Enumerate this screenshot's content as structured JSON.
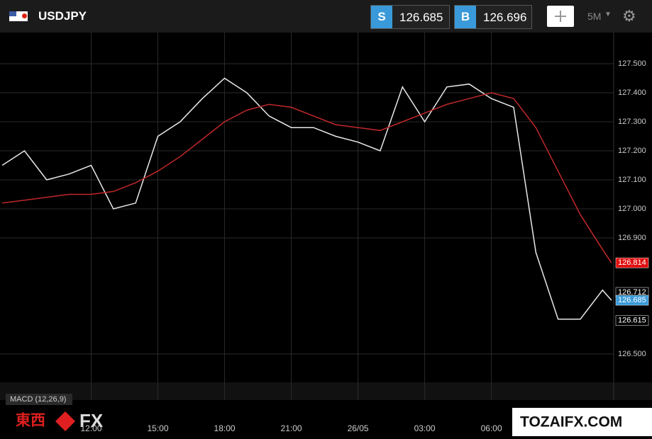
{
  "header": {
    "symbol": "USDJPY",
    "sell_label": "S",
    "sell_price": "126.685",
    "buy_label": "B",
    "buy_price": "126.696",
    "timeframe": "5M"
  },
  "chart_data": {
    "type": "line",
    "x": [
      -1,
      0,
      1,
      2,
      3,
      4,
      5,
      6,
      7,
      8,
      9,
      10,
      11,
      12,
      13,
      14,
      15,
      16,
      17,
      18,
      19,
      20,
      21,
      22,
      23,
      24,
      25,
      26,
      26.4
    ],
    "series": [
      {
        "color": "#e8e8e8",
        "values": [
          127.15,
          127.2,
          127.1,
          127.12,
          127.15,
          127.0,
          127.02,
          127.25,
          127.3,
          127.38,
          127.45,
          127.4,
          127.32,
          127.28,
          127.28,
          127.25,
          127.23,
          127.2,
          127.42,
          127.3,
          127.42,
          127.43,
          127.38,
          127.35,
          126.85,
          126.62,
          126.62,
          126.72,
          126.685
        ]
      },
      {
        "color": "#c0282a",
        "values": [
          127.02,
          127.03,
          127.04,
          127.05,
          127.05,
          127.06,
          127.09,
          127.13,
          127.18,
          127.24,
          127.3,
          127.34,
          127.36,
          127.35,
          127.32,
          127.29,
          127.28,
          127.27,
          127.3,
          127.33,
          127.36,
          127.38,
          127.4,
          127.38,
          127.28,
          127.13,
          126.98,
          126.86,
          126.814
        ]
      }
    ],
    "xlim": [
      -1.1,
      26.5
    ],
    "xticks": [
      {
        "value": 3,
        "label": "12:00"
      },
      {
        "value": 6,
        "label": "15:00"
      },
      {
        "value": 9,
        "label": "18:00"
      },
      {
        "value": 12,
        "label": "21:00"
      },
      {
        "value": 15,
        "label": "26/05"
      },
      {
        "value": 18,
        "label": "03:00"
      },
      {
        "value": 21,
        "label": "06:00"
      }
    ],
    "ylim": [
      126.407,
      127.605
    ],
    "yticks": [
      {
        "value": 127.5,
        "label": "127.500"
      },
      {
        "value": 127.4,
        "label": "127.400"
      },
      {
        "value": 127.3,
        "label": "127.300"
      },
      {
        "value": 127.2,
        "label": "127.200"
      },
      {
        "value": 127.1,
        "label": "127.100"
      },
      {
        "value": 127.0,
        "label": "127.000"
      },
      {
        "value": 126.9,
        "label": "126.900"
      },
      {
        "value": 126.5,
        "label": "126.500"
      }
    ],
    "grid": true,
    "price_markers": [
      {
        "value": 126.814,
        "color": "#e01010"
      },
      {
        "value": 126.712,
        "color": "#000000"
      },
      {
        "value": 126.685,
        "color": "#3a9ad9"
      },
      {
        "value": 126.615,
        "color": "#000000"
      }
    ],
    "indicator_label": "MACD (12,26,9)"
  },
  "watermark": {
    "left_text": "東西",
    "left_fx": "FX",
    "right_text": "TOZAIFX.COM"
  }
}
